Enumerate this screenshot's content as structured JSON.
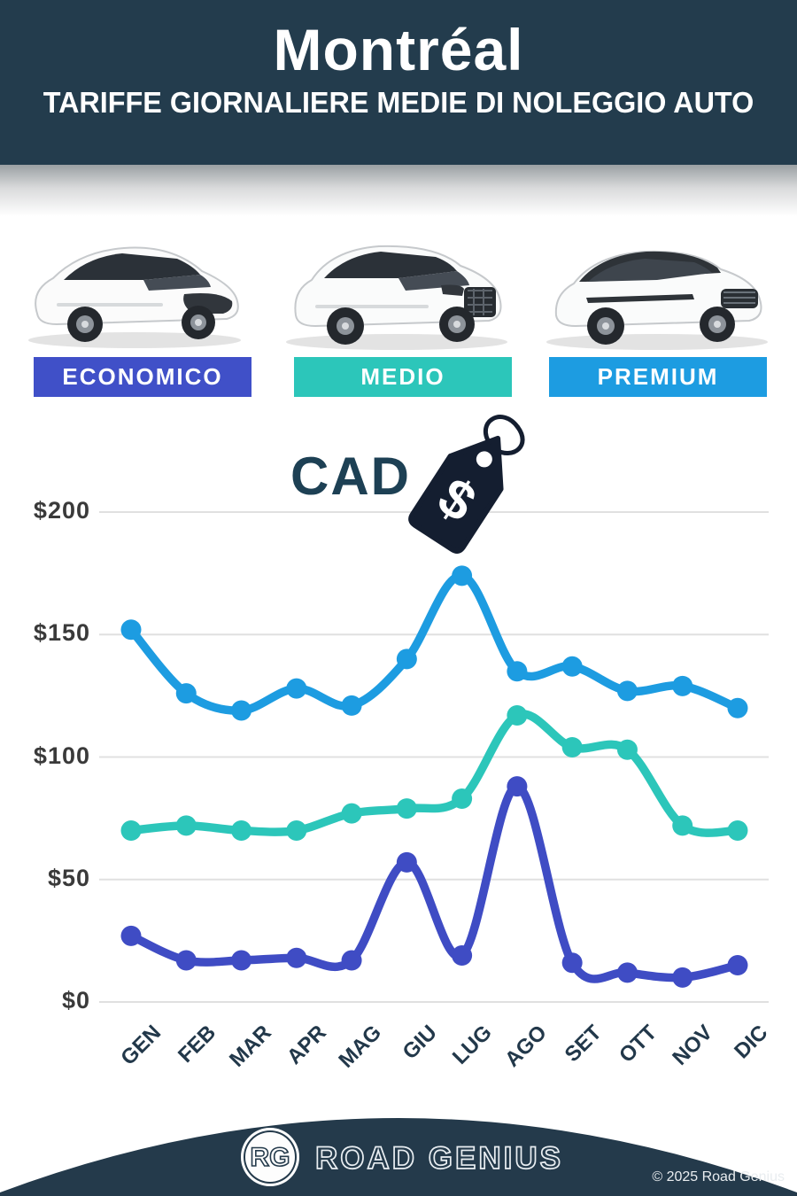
{
  "header": {
    "title": "Montréal",
    "subtitle": "TARIFFE GIORNALIERE MEDIE DI NOLEGGIO AUTO"
  },
  "categories": [
    {
      "label": "ECONOMICO",
      "color": "#4050c8",
      "car_icon": "compact-hatchback-car-icon"
    },
    {
      "label": "MEDIO",
      "color": "#2cc6ba",
      "car_icon": "midsize-suv-car-icon"
    },
    {
      "label": "PREMIUM",
      "color": "#1d9ce1",
      "car_icon": "premium-suv-car-icon"
    }
  ],
  "currency": {
    "label": "CAD",
    "icon": "price-tag-dollar-icon"
  },
  "chart_data": {
    "type": "line",
    "x": [
      "GEN",
      "FEB",
      "MAR",
      "APR",
      "MAG",
      "GIU",
      "LUG",
      "AGO",
      "SET",
      "OTT",
      "NOV",
      "DIC"
    ],
    "series": [
      {
        "name": "PREMIUM",
        "color": "#1d9ce1",
        "values": [
          152,
          126,
          119,
          128,
          121,
          140,
          174,
          135,
          137,
          127,
          129,
          120
        ]
      },
      {
        "name": "MEDIO",
        "color": "#2cc6ba",
        "values": [
          70,
          72,
          70,
          70,
          77,
          79,
          83,
          117,
          104,
          103,
          72,
          70
        ]
      },
      {
        "name": "ECONOMICO",
        "color": "#3f4cc4",
        "values": [
          27,
          17,
          17,
          18,
          17,
          57,
          19,
          88,
          16,
          12,
          10,
          15
        ]
      }
    ],
    "y_ticks": [
      {
        "value": 0,
        "label": "$0"
      },
      {
        "value": 50,
        "label": "$50"
      },
      {
        "value": 100,
        "label": "$100"
      },
      {
        "value": 150,
        "label": "$150"
      },
      {
        "value": 200,
        "label": "$200"
      }
    ],
    "ylim": [
      0,
      200
    ],
    "ylabel": "CAD $",
    "grid": true,
    "legend_position": "category-bands-above-chart"
  },
  "colors": {
    "header_bg": "#233c4d",
    "footer_bg": "#243a4b",
    "grid_line": "#e0e0e0",
    "y_tick_text": "#3a3a3a",
    "x_tick_text": "#22384a",
    "cad_text": "#1d4054",
    "tag_fill": "#141e30"
  },
  "footer": {
    "logo_initials": "RG",
    "brand": "ROAD GENIUS",
    "copyright": "© 2025 Road Genius"
  }
}
